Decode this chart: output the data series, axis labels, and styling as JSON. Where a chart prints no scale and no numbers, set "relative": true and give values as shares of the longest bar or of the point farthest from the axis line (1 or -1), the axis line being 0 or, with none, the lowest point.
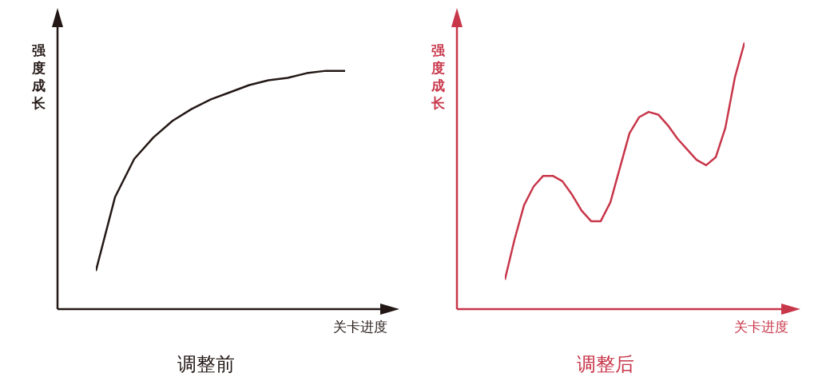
{
  "chart_data": [
    {
      "type": "line",
      "title": "调整前",
      "xlabel": "关卡进度",
      "ylabel": "强度成长",
      "relative": true,
      "categories": [
        null,
        null,
        null,
        null,
        null,
        null,
        null,
        null,
        null,
        null,
        null,
        null,
        null,
        null
      ],
      "series": [
        {
          "color": "#231815",
          "values": [
            0.16,
            0.47,
            0.63,
            0.72,
            0.79,
            0.84,
            0.88,
            0.91,
            0.94,
            0.96,
            0.97,
            0.99,
            1.0,
            1.0
          ]
        }
      ],
      "marker": "none"
    },
    {
      "type": "line",
      "title": "调整后",
      "xlabel": "关卡进度",
      "ylabel": "强度成长",
      "relative": true,
      "categories": [
        null,
        null,
        null,
        null,
        null,
        null,
        null,
        null,
        null,
        null,
        null,
        null,
        null,
        null,
        null,
        null,
        null,
        null,
        null,
        null,
        null,
        null,
        null,
        null,
        null,
        null
      ],
      "series": [
        {
          "color": "#c8364a",
          "values": [
            0.11,
            0.26,
            0.39,
            0.46,
            0.5,
            0.5,
            0.48,
            0.43,
            0.37,
            0.33,
            0.33,
            0.4,
            0.53,
            0.66,
            0.72,
            0.74,
            0.73,
            0.69,
            0.64,
            0.6,
            0.56,
            0.54,
            0.57,
            0.68,
            0.87,
            1.0
          ]
        }
      ],
      "marker": "none"
    }
  ]
}
